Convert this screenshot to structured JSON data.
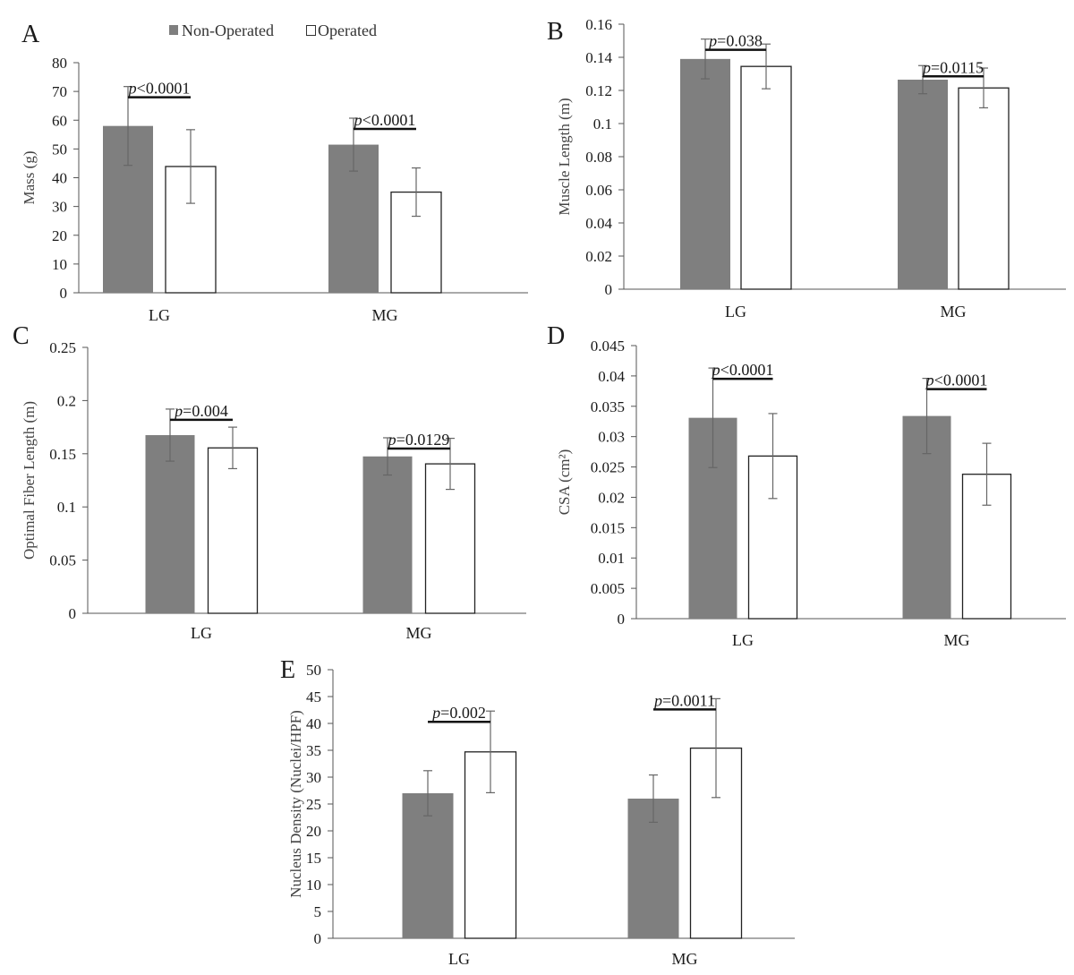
{
  "legend": [
    {
      "label": "Non-Operated",
      "color": "#7f7f7f",
      "swatch": "filled"
    },
    {
      "label": "Operated",
      "color": "#ffffff",
      "swatch": "outline"
    }
  ],
  "chart_data": [
    {
      "panel": "A",
      "type": "bar",
      "categories": [
        "LG",
        "MG"
      ],
      "ylabel": "Mass (g)",
      "ylim": [
        0,
        80
      ],
      "yticks": [
        0,
        10,
        20,
        30,
        40,
        50,
        60,
        70,
        80
      ],
      "ytick_labels": [
        "0",
        "10",
        "20",
        "30",
        "40",
        "50",
        "60",
        "70",
        "80"
      ],
      "series": [
        {
          "name": "Non-Operated",
          "values": [
            58.0,
            51.5
          ],
          "errors": [
            13.7,
            9.2
          ]
        },
        {
          "name": "Operated",
          "values": [
            43.9,
            35.0
          ],
          "errors": [
            12.8,
            8.4
          ]
        }
      ],
      "pvalues": [
        {
          "category": "LG",
          "p": "p",
          "rest": "<0.0001"
        },
        {
          "category": "MG",
          "p": "p",
          "rest": "<0.0001"
        }
      ]
    },
    {
      "panel": "B",
      "type": "bar",
      "categories": [
        "LG",
        "MG"
      ],
      "ylabel": "Muscle Length (m)",
      "ylim": [
        0,
        0.16
      ],
      "yticks": [
        0,
        0.02,
        0.04,
        0.06,
        0.08,
        0.1,
        0.12,
        0.14,
        0.16
      ],
      "ytick_labels": [
        "0",
        "0.02",
        "0.04",
        "0.06",
        "0.08",
        "0.1",
        "0.12",
        "0.14",
        "0.16"
      ],
      "series": [
        {
          "name": "Non-Operated",
          "values": [
            0.139,
            0.1265
          ],
          "errors": [
            0.012,
            0.0085
          ]
        },
        {
          "name": "Operated",
          "values": [
            0.1345,
            0.1215
          ],
          "errors": [
            0.0135,
            0.012
          ]
        }
      ],
      "pvalues": [
        {
          "category": "LG",
          "p": "p",
          "rest": "=0.038"
        },
        {
          "category": "MG",
          "p": "p",
          "rest": "=0.0115"
        }
      ]
    },
    {
      "panel": "C",
      "type": "bar",
      "categories": [
        "LG",
        "MG"
      ],
      "ylabel": "Optimal Fiber Length (m)",
      "ylim": [
        0,
        0.25
      ],
      "yticks": [
        0,
        0.05,
        0.1,
        0.15,
        0.2,
        0.25
      ],
      "ytick_labels": [
        "0",
        "0.05",
        "0.1",
        "0.15",
        "0.2",
        "0.25"
      ],
      "series": [
        {
          "name": "Non-Operated",
          "values": [
            0.1675,
            0.1475
          ],
          "errors": [
            0.0245,
            0.0175
          ]
        },
        {
          "name": "Operated",
          "values": [
            0.1555,
            0.1405
          ],
          "errors": [
            0.0195,
            0.024
          ]
        }
      ],
      "pvalues": [
        {
          "category": "LG",
          "p": "p",
          "rest": "=0.004"
        },
        {
          "category": "MG",
          "p": "p",
          "rest": "=0.0129"
        }
      ]
    },
    {
      "panel": "D",
      "type": "bar",
      "categories": [
        "LG",
        "MG"
      ],
      "ylabel": "CSA (cm²)",
      "ylim": [
        0,
        0.045
      ],
      "yticks": [
        0,
        0.005,
        0.01,
        0.015,
        0.02,
        0.025,
        0.03,
        0.035,
        0.04,
        0.045
      ],
      "ytick_labels": [
        "0",
        "0.005",
        "0.01",
        "0.015",
        "0.02",
        "0.025",
        "0.03",
        "0.035",
        "0.04",
        "0.045"
      ],
      "series": [
        {
          "name": "Non-Operated",
          "values": [
            0.0331,
            0.0334
          ],
          "errors": [
            0.0082,
            0.0062
          ]
        },
        {
          "name": "Operated",
          "values": [
            0.0268,
            0.0238
          ],
          "errors": [
            0.007,
            0.0051
          ]
        }
      ],
      "pvalues": [
        {
          "category": "LG",
          "p": "p",
          "rest": "<0.0001"
        },
        {
          "category": "MG",
          "p": "p",
          "rest": "<0.0001"
        }
      ]
    },
    {
      "panel": "E",
      "type": "bar",
      "categories": [
        "LG",
        "MG"
      ],
      "ylabel": "Nucleus Density (Nuclei/HPF)",
      "ylim": [
        0,
        50
      ],
      "yticks": [
        0,
        5,
        10,
        15,
        20,
        25,
        30,
        35,
        40,
        45,
        50
      ],
      "ytick_labels": [
        "0",
        "5",
        "10",
        "15",
        "20",
        "25",
        "30",
        "35",
        "40",
        "45",
        "50"
      ],
      "series": [
        {
          "name": "Non-Operated",
          "values": [
            27.0,
            26.0
          ],
          "errors": [
            4.2,
            4.4
          ]
        },
        {
          "name": "Operated",
          "values": [
            34.7,
            35.4
          ],
          "errors": [
            7.6,
            9.2
          ]
        }
      ],
      "pvalues": [
        {
          "category": "LG",
          "p": "p",
          "rest": "=0.002"
        },
        {
          "category": "MG",
          "p": "p",
          "rest": "=0.0011"
        }
      ]
    }
  ]
}
